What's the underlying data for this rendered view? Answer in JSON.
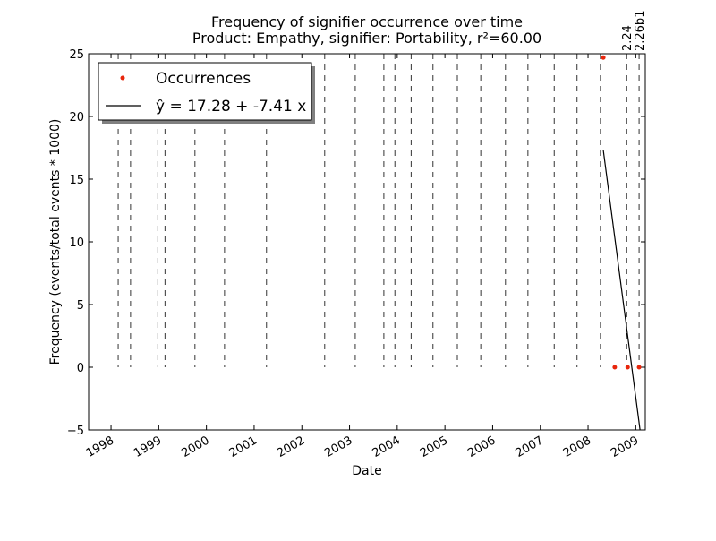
{
  "chart_data": {
    "type": "scatter",
    "title": "Frequency of signifier occurrence over time",
    "subtitle": "Product: Empathy, signifier: Portability, r²=60.00",
    "x_label": "Date",
    "y_label": "Frequency (events/total events * 1000)",
    "xlim": [
      1997.53,
      2009.2
    ],
    "xticks": [
      1998,
      1999,
      2000,
      2001,
      2002,
      2003,
      2004,
      2005,
      2006,
      2007,
      2008,
      2009
    ],
    "ylim": [
      -5,
      25
    ],
    "yticks": [
      {
        "value": -5,
        "label": "−5"
      },
      0,
      5,
      10,
      15,
      20,
      25
    ],
    "legend": "upper left",
    "vlines": [
      {
        "x": 1998.15
      },
      {
        "x": 1998.41
      },
      {
        "x": 1998.98
      },
      {
        "x": 1999.13
      },
      {
        "x": 1999.76
      },
      {
        "x": 2000.38
      },
      {
        "x": 2001.26
      },
      {
        "x": 2002.48
      },
      {
        "x": 2003.12
      },
      {
        "x": 2003.72
      },
      {
        "x": 2003.95
      },
      {
        "x": 2004.29
      },
      {
        "x": 2004.75
      },
      {
        "x": 2005.26
      },
      {
        "x": 2005.75
      },
      {
        "x": 2006.27
      },
      {
        "x": 2006.74
      },
      {
        "x": 2007.29
      },
      {
        "x": 2007.77
      },
      {
        "x": 2008.26
      },
      {
        "x": 2008.81,
        "label": "2.24"
      },
      {
        "x": 2009.07,
        "label": "2.26b1"
      }
    ],
    "series": [
      {
        "name": "Occurrences",
        "style": "markers",
        "color": "#e8260c",
        "x": [
          2008.32,
          2008.56,
          2008.83,
          2009.07
        ],
        "values": [
          24.7,
          0,
          0,
          0
        ]
      },
      {
        "name": "ŷ = 17.28 + -7.41 x",
        "style": "line",
        "color": "#000000",
        "x": [
          2008.32,
          2009.09
        ],
        "values": [
          17.3,
          -5
        ]
      }
    ]
  }
}
